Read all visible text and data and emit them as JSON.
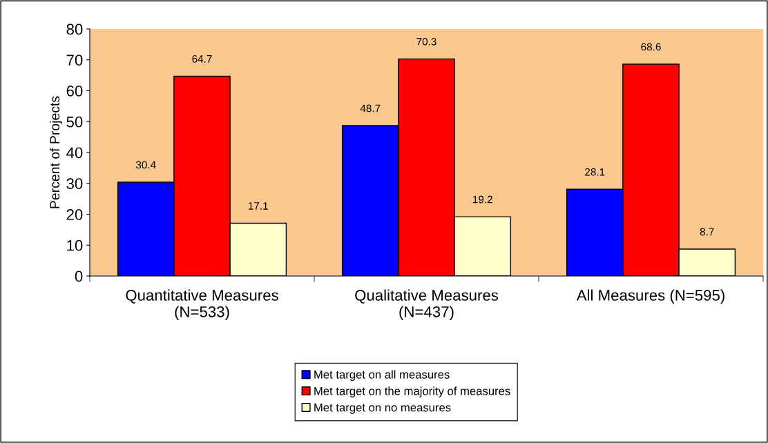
{
  "chart_data": {
    "type": "bar",
    "ylabel": "Percent of Projects",
    "categories": [
      "Quantitative Measures\n(N=533)",
      "Qualitative Measures\n(N=437)",
      "All Measures (N=595)"
    ],
    "series": [
      {
        "name": "Met target on all measures",
        "color": "#0000ff",
        "values": [
          30.4,
          48.7,
          28.1
        ]
      },
      {
        "name": "Met target on the majority of measures",
        "color": "#ff0000",
        "values": [
          64.7,
          70.3,
          68.6
        ]
      },
      {
        "name": "Met target on no measures",
        "color": "#ffffcc",
        "values": [
          17.1,
          19.2,
          8.7
        ]
      }
    ],
    "ylim": [
      0,
      80
    ],
    "yticks": [
      0,
      10,
      20,
      30,
      40,
      50,
      60,
      70,
      80
    ],
    "data_labels": true,
    "grid": false,
    "legend": "bottom"
  }
}
